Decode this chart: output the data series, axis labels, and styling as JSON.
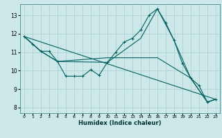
{
  "xlabel": "Humidex (Indice chaleur)",
  "bg_color": "#cce8e8",
  "line_color": "#006060",
  "grid_color": "#aacece",
  "xlim": [
    -0.5,
    23.5
  ],
  "ylim": [
    7.7,
    13.6
  ],
  "yticks": [
    8,
    9,
    10,
    11,
    12,
    13
  ],
  "xticks": [
    0,
    1,
    2,
    3,
    4,
    5,
    6,
    7,
    8,
    9,
    10,
    11,
    12,
    13,
    14,
    15,
    16,
    17,
    18,
    19,
    20,
    21,
    22,
    23
  ],
  "line1_x": [
    0,
    1,
    2,
    3,
    4,
    5,
    6,
    7,
    8,
    9,
    10,
    11,
    12,
    13,
    14,
    15,
    16,
    17,
    18,
    19,
    20,
    21,
    22,
    23
  ],
  "line1_y": [
    11.85,
    11.45,
    11.05,
    11.05,
    10.5,
    9.7,
    9.7,
    9.7,
    10.05,
    9.75,
    10.45,
    11.0,
    11.55,
    11.75,
    12.2,
    13.0,
    13.35,
    12.6,
    11.65,
    10.4,
    9.6,
    9.2,
    8.3,
    8.45
  ],
  "line2_x": [
    0,
    23
  ],
  "line2_y": [
    11.85,
    8.45
  ],
  "line3_x": [
    0,
    2,
    4,
    10,
    14,
    16,
    18,
    20,
    22,
    23
  ],
  "line3_y": [
    11.85,
    11.05,
    10.5,
    10.45,
    11.75,
    13.35,
    11.65,
    9.6,
    8.3,
    8.45
  ],
  "line4_x": [
    0,
    2,
    4,
    10,
    16,
    20,
    22,
    23
  ],
  "line4_y": [
    11.85,
    11.05,
    10.5,
    10.7,
    10.7,
    9.6,
    8.3,
    8.45
  ]
}
